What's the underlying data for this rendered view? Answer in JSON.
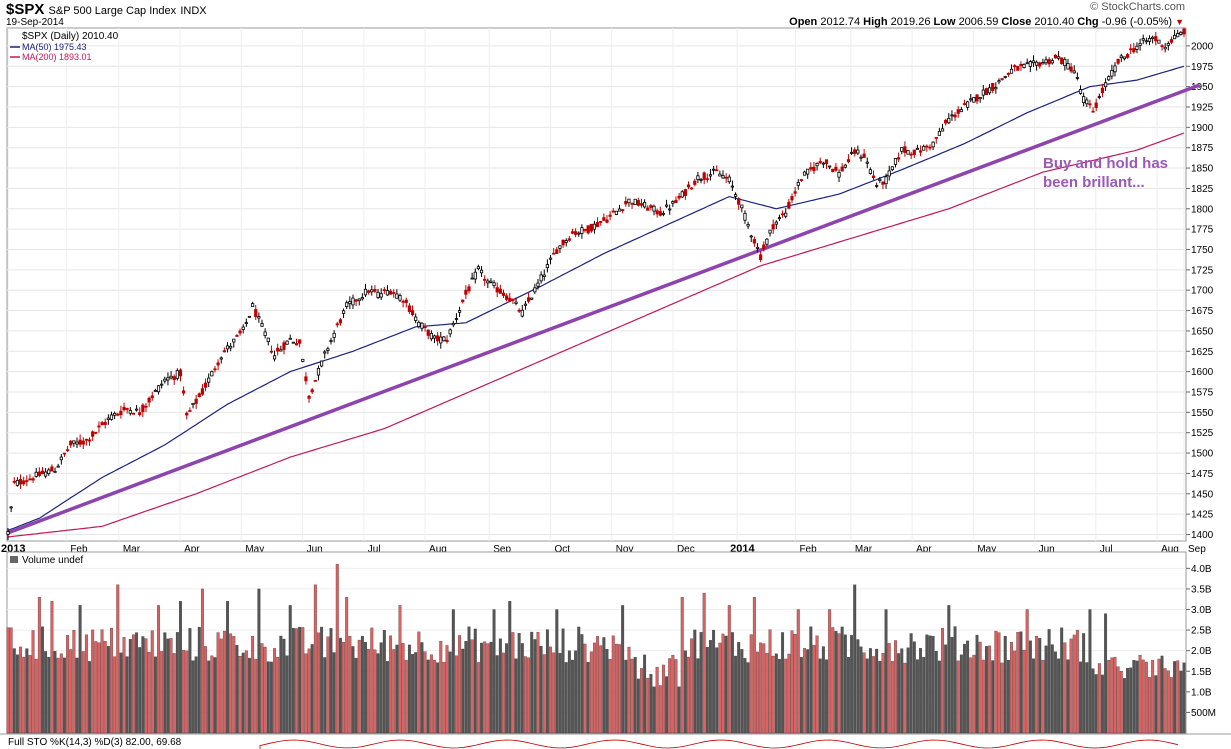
{
  "header": {
    "symbol": "$SPX",
    "name": "S&P 500 Large Cap Index",
    "exchange": "INDX",
    "date": "19-Sep-2014",
    "source": "© StockCharts.com",
    "open_label": "Open",
    "open": "2012.74",
    "high_label": "High",
    "high": "2019.26",
    "low_label": "Low",
    "low": "2006.59",
    "close_label": "Close",
    "close": "2010.40",
    "chg_label": "Chg",
    "chg": "-0.96 (-0.05%)",
    "chg_arrow": "▼"
  },
  "colors": {
    "up": "#000000",
    "down": "#c00000",
    "ma50": "#1a237e",
    "ma200": "#c2185b",
    "trend": "#8e44ad",
    "annotation": "#9b59b6",
    "vol_up": "#555555",
    "vol_down": "#e06060"
  },
  "chart_data": [
    {
      "type": "line",
      "panel": "price",
      "legend": [
        "$SPX (Daily) 2010.40",
        "MA(50) 1975.43",
        "MA(200) 1893.01"
      ],
      "x_tick_labels": [
        "2013",
        "Feb",
        "Mar",
        "Apr",
        "May",
        "Jun",
        "Jul",
        "Aug",
        "Sep",
        "Oct",
        "Nov",
        "Dec",
        "2014",
        "Feb",
        "Mar",
        "Apr",
        "May",
        "Jun",
        "Jul",
        "Aug",
        "Sep"
      ],
      "y_tick_labels": [
        "1400",
        "1425",
        "1450",
        "1475",
        "1500",
        "1525",
        "1550",
        "1575",
        "1600",
        "1625",
        "1650",
        "1675",
        "1700",
        "1725",
        "1750",
        "1775",
        "1800",
        "1825",
        "1850",
        "1875",
        "1900",
        "1925",
        "1950",
        "1975",
        "2000"
      ],
      "ylim": [
        1392,
        2022
      ],
      "price_points": [
        [
          0,
          1402
        ],
        [
          2,
          1462
        ],
        [
          15,
          1480
        ],
        [
          20,
          1510
        ],
        [
          25,
          1515
        ],
        [
          33,
          1545
        ],
        [
          38,
          1555
        ],
        [
          42,
          1550
        ],
        [
          50,
          1590
        ],
        [
          55,
          1598
        ],
        [
          57,
          1545
        ],
        [
          62,
          1575
        ],
        [
          68,
          1620
        ],
        [
          75,
          1650
        ],
        [
          78,
          1680
        ],
        [
          85,
          1620
        ],
        [
          90,
          1640
        ],
        [
          93,
          1635
        ],
        [
          96,
          1570
        ],
        [
          102,
          1630
        ],
        [
          108,
          1680
        ],
        [
          115,
          1700
        ],
        [
          118,
          1695
        ],
        [
          122,
          1700
        ],
        [
          126,
          1690
        ],
        [
          131,
          1660
        ],
        [
          136,
          1640
        ],
        [
          140,
          1640
        ],
        [
          146,
          1695
        ],
        [
          150,
          1725
        ],
        [
          153,
          1710
        ],
        [
          160,
          1690
        ],
        [
          164,
          1672
        ],
        [
          168,
          1700
        ],
        [
          175,
          1750
        ],
        [
          180,
          1770
        ],
        [
          185,
          1775
        ],
        [
          192,
          1790
        ],
        [
          198,
          1810
        ],
        [
          202,
          1805
        ],
        [
          208,
          1795
        ],
        [
          213,
          1808
        ],
        [
          220,
          1838
        ],
        [
          226,
          1845
        ],
        [
          230,
          1835
        ],
        [
          233,
          1810
        ],
        [
          236,
          1780
        ],
        [
          240,
          1742
        ],
        [
          244,
          1780
        ],
        [
          248,
          1795
        ],
        [
          253,
          1838
        ],
        [
          260,
          1860
        ],
        [
          265,
          1843
        ],
        [
          270,
          1870
        ],
        [
          273,
          1865
        ],
        [
          277,
          1830
        ],
        [
          280,
          1835
        ],
        [
          285,
          1872
        ],
        [
          290,
          1870
        ],
        [
          295,
          1880
        ],
        [
          300,
          1910
        ],
        [
          305,
          1925
        ],
        [
          310,
          1940
        ],
        [
          315,
          1952
        ],
        [
          320,
          1970
        ],
        [
          325,
          1975
        ],
        [
          330,
          1980
        ],
        [
          335,
          1985
        ],
        [
          340,
          1970
        ],
        [
          343,
          1935
        ],
        [
          346,
          1920
        ],
        [
          350,
          1952
        ],
        [
          354,
          1980
        ],
        [
          360,
          2000
        ],
        [
          365,
          2010
        ],
        [
          369,
          2000
        ],
        [
          372,
          2010
        ],
        [
          375,
          2018
        ]
      ],
      "ma50": [
        [
          0,
          1405
        ],
        [
          10,
          1420
        ],
        [
          30,
          1470
        ],
        [
          50,
          1510
        ],
        [
          70,
          1560
        ],
        [
          90,
          1600
        ],
        [
          110,
          1625
        ],
        [
          130,
          1655
        ],
        [
          146,
          1660
        ],
        [
          170,
          1705
        ],
        [
          190,
          1745
        ],
        [
          210,
          1780
        ],
        [
          230,
          1815
        ],
        [
          245,
          1800
        ],
        [
          265,
          1818
        ],
        [
          285,
          1848
        ],
        [
          305,
          1880
        ],
        [
          325,
          1918
        ],
        [
          345,
          1950
        ],
        [
          360,
          1958
        ],
        [
          375,
          1975
        ]
      ],
      "ma200": [
        [
          0,
          1397
        ],
        [
          30,
          1410
        ],
        [
          60,
          1450
        ],
        [
          90,
          1495
        ],
        [
          120,
          1530
        ],
        [
          150,
          1580
        ],
        [
          180,
          1630
        ],
        [
          210,
          1680
        ],
        [
          240,
          1730
        ],
        [
          270,
          1765
        ],
        [
          300,
          1800
        ],
        [
          330,
          1845
        ],
        [
          360,
          1872
        ],
        [
          375,
          1893
        ]
      ],
      "trendline": [
        [
          0,
          1402
        ],
        [
          380,
          1952
        ]
      ],
      "annotation": "Buy and hold has been brillant..."
    },
    {
      "type": "bar",
      "panel": "volume",
      "title": "Volume undef",
      "y_tick_labels": [
        "500M",
        "1.0B",
        "1.5B",
        "2.0B",
        "2.5B",
        "3.0B",
        "3.5B",
        "4.0B"
      ],
      "ylim": [
        0,
        4.3
      ],
      "spikes_billions": {
        "10": 3.3,
        "14": 3.2,
        "23": 3.1,
        "35": 3.6,
        "48": 3.1,
        "55": 3.2,
        "62": 3.5,
        "70": 3.2,
        "80": 3.5,
        "90": 3.1,
        "98": 3.6,
        "105": 4.1,
        "108": 3.3,
        "125": 3.1,
        "142": 3.0,
        "155": 3.0,
        "160": 3.2,
        "175": 3.0,
        "196": 3.1,
        "215": 3.3,
        "222": 3.4,
        "230": 3.1,
        "238": 3.3,
        "252": 3.0,
        "262": 3.0,
        "270": 3.6,
        "280": 3.0,
        "300": 3.1,
        "325": 3.0,
        "345": 3.0,
        "350": 2.9
      }
    }
  ],
  "indicator": {
    "label": "Full STO %K(14,3) %D(3) 82.00, 69.68"
  }
}
